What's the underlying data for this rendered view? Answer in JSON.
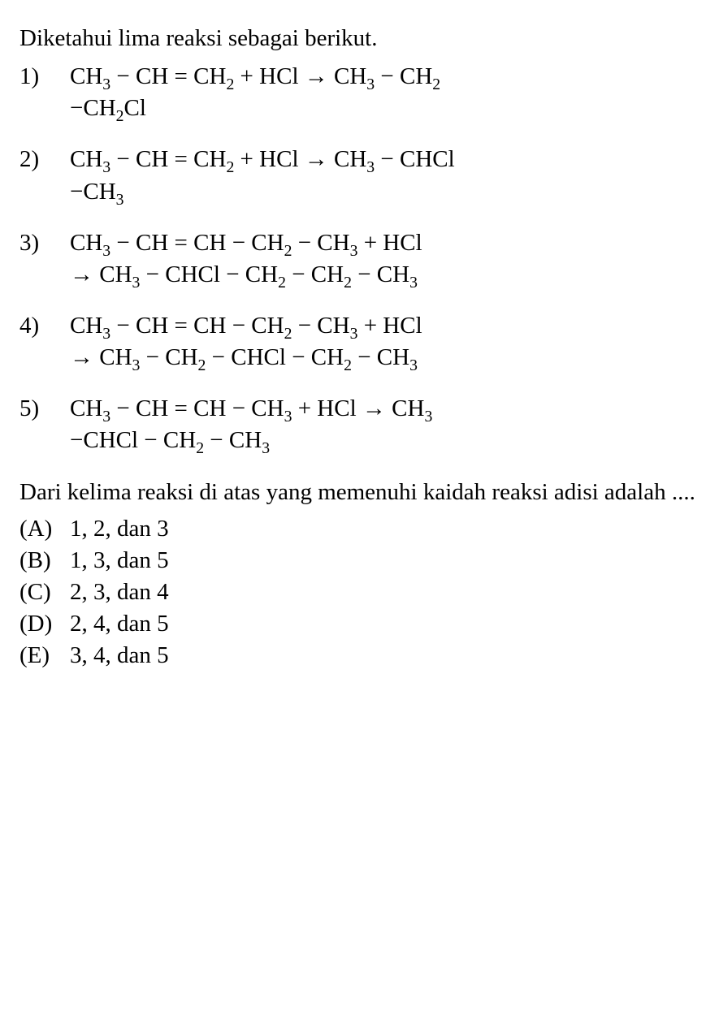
{
  "intro": "Diketahui lima reaksi sebagai berikut.",
  "reactions": [
    {
      "num": "1)",
      "lines": [
        [
          {
            "t": "CH"
          },
          {
            "sub": "3"
          },
          {
            "t": " − CH = CH"
          },
          {
            "sub": "2"
          },
          {
            "t": " + HCl "
          },
          {
            "arrow": "→"
          },
          {
            "t": " CH"
          },
          {
            "sub": "3"
          },
          {
            "t": " − CH"
          },
          {
            "sub": "2"
          }
        ],
        [
          {
            "t": "−CH"
          },
          {
            "sub": "2"
          },
          {
            "t": "Cl"
          }
        ]
      ]
    },
    {
      "num": "2)",
      "lines": [
        [
          {
            "t": "CH"
          },
          {
            "sub": "3"
          },
          {
            "t": " − CH = CH"
          },
          {
            "sub": "2"
          },
          {
            "t": " + HCl "
          },
          {
            "arrow": "→"
          },
          {
            "t": " CH"
          },
          {
            "sub": "3"
          },
          {
            "t": " − CHCl"
          }
        ],
        [
          {
            "t": "−CH"
          },
          {
            "sub": "3"
          }
        ]
      ]
    },
    {
      "num": "3)",
      "lines": [
        [
          {
            "t": "CH"
          },
          {
            "sub": "3"
          },
          {
            "t": " − CH = CH − CH"
          },
          {
            "sub": "2"
          },
          {
            "t": " − CH"
          },
          {
            "sub": "3"
          },
          {
            "t": " + HCl"
          }
        ],
        [
          {
            "arrow": "→"
          },
          {
            "t": " CH"
          },
          {
            "sub": "3"
          },
          {
            "t": " − CHCl − CH"
          },
          {
            "sub": "2"
          },
          {
            "t": " − CH"
          },
          {
            "sub": "2"
          },
          {
            "t": " − CH"
          },
          {
            "sub": "3"
          }
        ]
      ]
    },
    {
      "num": "4)",
      "lines": [
        [
          {
            "t": "CH"
          },
          {
            "sub": "3"
          },
          {
            "t": " − CH = CH − CH"
          },
          {
            "sub": "2"
          },
          {
            "t": " − CH"
          },
          {
            "sub": "3"
          },
          {
            "t": " + HCl"
          }
        ],
        [
          {
            "arrow": "→"
          },
          {
            "t": " CH"
          },
          {
            "sub": "3"
          },
          {
            "t": " − CH"
          },
          {
            "sub": "2"
          },
          {
            "t": " − CHCl − CH"
          },
          {
            "sub": "2"
          },
          {
            "t": " − CH"
          },
          {
            "sub": "3"
          }
        ]
      ]
    },
    {
      "num": "5)",
      "lines": [
        [
          {
            "t": "CH"
          },
          {
            "sub": "3"
          },
          {
            "t": " − CH = CH − CH"
          },
          {
            "sub": "3"
          },
          {
            "t": " + HCl "
          },
          {
            "arrow": "→"
          },
          {
            "t": " CH"
          },
          {
            "sub": "3"
          }
        ],
        [
          {
            "t": "−CHCl − CH"
          },
          {
            "sub": "2"
          },
          {
            "t": " − CH"
          },
          {
            "sub": "3"
          }
        ]
      ]
    }
  ],
  "closing": "Dari kelima reaksi di atas yang memenuhi kaidah reaksi adisi adalah ....",
  "options": [
    {
      "label": "(A)",
      "text": "1, 2, dan 3"
    },
    {
      "label": "(B)",
      "text": "1, 3, dan 5"
    },
    {
      "label": "(C)",
      "text": "2, 3, dan 4"
    },
    {
      "label": "(D)",
      "text": "2, 4, dan 5"
    },
    {
      "label": "(E)",
      "text": "3, 4, dan 5"
    }
  ]
}
